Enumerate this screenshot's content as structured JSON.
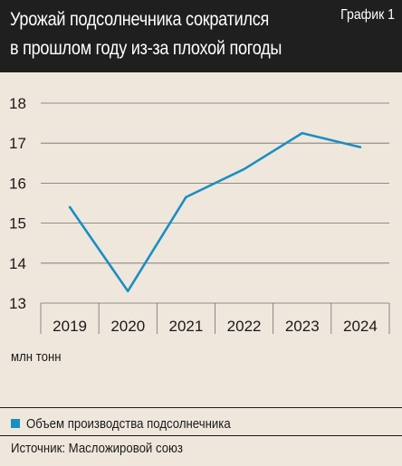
{
  "header": {
    "title_line1": "Урожай подсолнечника сократился",
    "title_line2": "в прошлом году из-за плохой погоды",
    "graph_label": "График 1"
  },
  "colors": {
    "background": "#efe7dc",
    "header": "#1f1f1f",
    "series": "#1a8fc2",
    "grid": "#6f6f6f"
  },
  "chart_data": {
    "type": "line",
    "x": [
      "2019",
      "2020",
      "2021",
      "2022",
      "2023",
      "2024"
    ],
    "series": [
      {
        "name": "Объем производства подсолнечника",
        "values": [
          15.4,
          13.3,
          15.65,
          16.35,
          17.25,
          16.9
        ]
      }
    ],
    "ylabel": "млн тонн",
    "ylim": [
      13,
      18
    ],
    "yticks": [
      "13",
      "14",
      "15",
      "16",
      "17",
      "18"
    ],
    "grid": "horizontal"
  },
  "legend": {
    "label": "Объем производства подсолнечника"
  },
  "source": "Источник: Масложировой союз"
}
